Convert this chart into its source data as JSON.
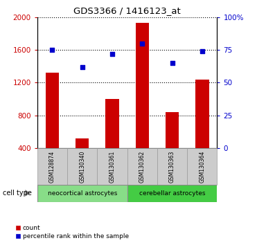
{
  "title": "GDS3366 / 1416123_at",
  "samples": [
    "GSM128874",
    "GSM130340",
    "GSM130361",
    "GSM130362",
    "GSM130363",
    "GSM130364"
  ],
  "counts": [
    1320,
    520,
    1000,
    1930,
    840,
    1240
  ],
  "percentiles": [
    75,
    62,
    72,
    80,
    65,
    74
  ],
  "bar_color": "#cc0000",
  "dot_color": "#0000cc",
  "ylim_left": [
    400,
    2000
  ],
  "ylim_right": [
    0,
    100
  ],
  "yticks_left": [
    400,
    800,
    1200,
    1600,
    2000
  ],
  "yticks_right": [
    0,
    25,
    50,
    75,
    100
  ],
  "cell_type_groups": [
    {
      "label": "neocortical astrocytes",
      "color": "#88dd88"
    },
    {
      "label": "cerebellar astrocytes",
      "color": "#44cc44"
    }
  ],
  "cell_type_label": "cell type",
  "legend_count_label": "count",
  "legend_percentile_label": "percentile rank within the sample",
  "tick_label_color_left": "#cc0000",
  "tick_label_color_right": "#0000cc"
}
